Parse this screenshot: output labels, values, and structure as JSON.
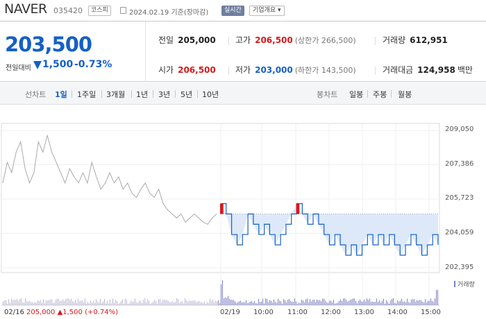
{
  "header": {
    "name": "NAVER",
    "code": "035420",
    "market": "코스피",
    "date": "2024.02.19 기준(장마감)",
    "realtime": "실시간",
    "company_info": "기업개요 ▾"
  },
  "price": {
    "current": "203,500",
    "compare_label": "전일대비",
    "change": "1,500",
    "rate": "-0.73%"
  },
  "stats": {
    "prev_close": {
      "label": "전일",
      "value": "205,000"
    },
    "high": {
      "label": "고가",
      "value": "206,500",
      "sub": "(상한가 266,500)"
    },
    "volume": {
      "label": "거래량",
      "value": "612,951"
    },
    "open": {
      "label": "시가",
      "value": "206,500"
    },
    "low": {
      "label": "저가",
      "value": "203,000",
      "sub": "(하한가 143,500)"
    },
    "amount": {
      "label": "거래대금",
      "value": "124,958",
      "unit": "백만"
    }
  },
  "tabs": {
    "line_label": "선차트",
    "line_items": [
      "1일",
      "1주일",
      "3개월",
      "1년",
      "3년",
      "5년",
      "10년"
    ],
    "candle_label": "봉차트",
    "candle_items": [
      "일봉",
      "주봉",
      "월봉"
    ]
  },
  "colors": {
    "up": "#d7191c",
    "down": "#1560c5",
    "prev_line": "#aaaaaa",
    "volume": "#7d7fc4"
  },
  "chart_data": {
    "type": "line",
    "y_ticks": [
      "209,050",
      "207,386",
      "205,723",
      "204,059",
      "202,395"
    ],
    "ylim": [
      202395,
      209050
    ],
    "x_ticks": [
      "02/19",
      "10:00",
      "11:00",
      "12:00",
      "13:00",
      "14:00",
      "15:00"
    ],
    "reference_price": 205000,
    "previous_day": {
      "label": "02/16",
      "values": [
        206500,
        207500,
        207000,
        208000,
        208500,
        207200,
        206500,
        207000,
        208500,
        208000,
        208800,
        208000,
        207500,
        207000,
        206500,
        207200,
        206800,
        206500,
        207000,
        206500,
        207500,
        206800,
        206200,
        206500,
        207000,
        206500,
        206800,
        206200,
        206500,
        206000,
        205800,
        206200,
        206500,
        206000,
        205800,
        206200,
        205500,
        205200,
        205000,
        204800,
        205000,
        204600,
        204800,
        205000,
        204800,
        204600,
        204500,
        204800,
        205000
      ]
    },
    "today": {
      "values": [
        205500,
        205000,
        204000,
        203500,
        204000,
        205000,
        204500,
        204000,
        204500,
        204000,
        203500,
        204000,
        204500,
        205000,
        205500,
        205000,
        204500,
        205000,
        204500,
        204000,
        203500,
        204000,
        203500,
        203000,
        203500,
        203000,
        203500,
        204000,
        203500,
        204000,
        203500,
        204000,
        203500,
        203000,
        203500,
        204000,
        203500,
        203000,
        203500,
        204000,
        203500
      ]
    },
    "volume_label": "거래량",
    "footer": {
      "date": "02/16",
      "close": "205,000",
      "change": "▲1,500",
      "rate": "(+0.74%)"
    }
  }
}
